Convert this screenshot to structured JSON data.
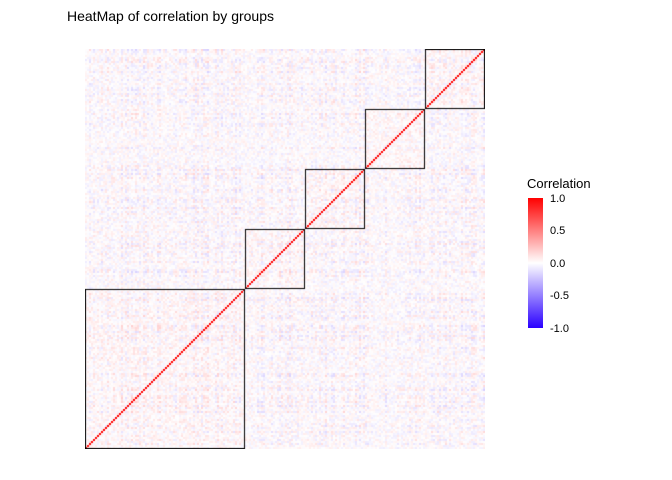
{
  "title": "HeatMap of correlation by groups",
  "legend": {
    "title": "Correlation",
    "ticks": [
      "1.0",
      "0.5",
      "0.0",
      "-0.5",
      "-1.0"
    ]
  },
  "chart_data": {
    "type": "heatmap",
    "title": "HeatMap of correlation by groups",
    "n": 200,
    "value_range": [
      -1,
      1
    ],
    "diagonal_value": 1.0,
    "offdiagonal_range": [
      -0.2,
      0.2
    ],
    "group_boundaries": [
      0.0,
      0.4,
      0.55,
      0.7,
      0.85,
      1.0
    ],
    "groups": [
      {
        "start": 0.0,
        "end": 0.4
      },
      {
        "start": 0.4,
        "end": 0.55
      },
      {
        "start": 0.55,
        "end": 0.7
      },
      {
        "start": 0.7,
        "end": 0.85
      },
      {
        "start": 0.85,
        "end": 1.0
      }
    ],
    "block_outline_color": "#000000",
    "colorscale": {
      "positive": "#FF0000",
      "mid": "#FFFFFF",
      "negative": "#2A00FF"
    },
    "legend": {
      "title": "Correlation",
      "tick_values": [
        1.0,
        0.5,
        0.0,
        -0.5,
        -1.0
      ],
      "position": "right"
    },
    "axes": {
      "x_tick_labels": [],
      "y_tick_labels": [],
      "grid": false
    }
  }
}
